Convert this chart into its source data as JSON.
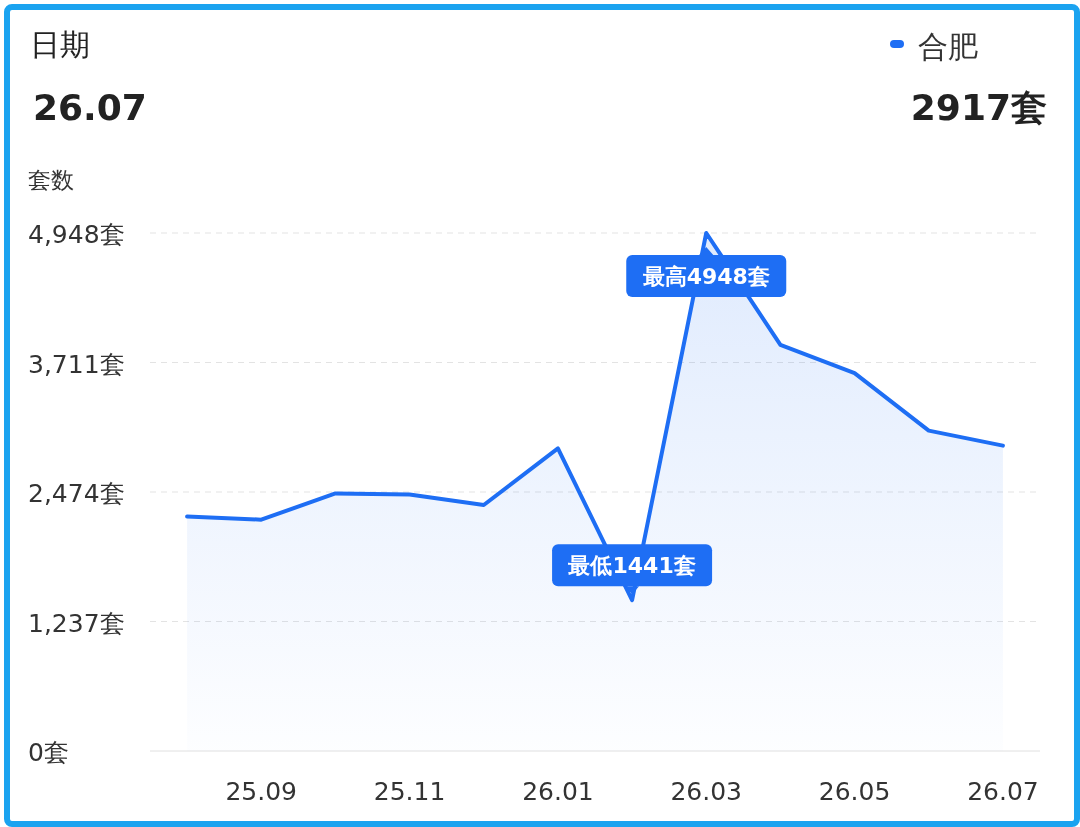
{
  "chart_data": {
    "type": "area",
    "ylabel": "套数",
    "categories": [
      null,
      "25.09",
      null,
      "25.11",
      null,
      "26.01",
      null,
      "26.03",
      null,
      "26.05",
      null,
      "26.07"
    ],
    "series": [
      {
        "name": "合肥",
        "color": "#1e6ef4",
        "values": [
          2240,
          2210,
          2460,
          2450,
          2350,
          2890,
          1441,
          4948,
          3880,
          3610,
          3060,
          2917
        ]
      }
    ],
    "ylim": [
      0,
      4948
    ],
    "yticks": [
      {
        "value": 0,
        "label": "0套"
      },
      {
        "value": 1237,
        "label": "1,237套"
      },
      {
        "value": 2474,
        "label": "2,474套"
      },
      {
        "value": 3711,
        "label": "3,711套"
      },
      {
        "value": 4948,
        "label": "4,948套"
      }
    ],
    "grid": "y",
    "legend": "top right",
    "annotations": [
      "日期",
      "26.07",
      "2917套",
      {
        "text": "最高4948套",
        "x": "26.03",
        "y": 4948
      },
      {
        "text": "最低1441套",
        "y": 1441
      }
    ]
  }
}
